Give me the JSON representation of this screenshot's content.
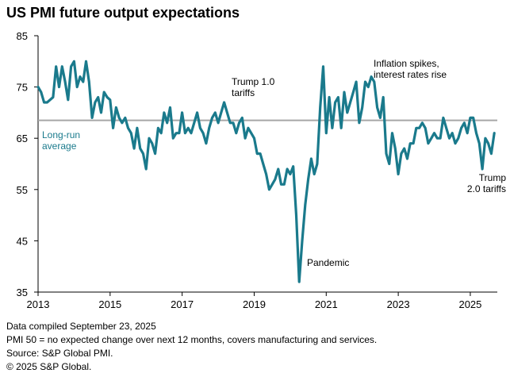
{
  "title": "US PMI future output expectations",
  "chart_data": {
    "type": "line",
    "title": "US PMI future output expectations",
    "xlabel": "",
    "ylabel": "",
    "xlim": [
      2013.0,
      2025.75
    ],
    "ylim": [
      35,
      85
    ],
    "y_ticks": [
      35,
      45,
      55,
      65,
      75,
      85
    ],
    "x_ticks": [
      2013,
      2015,
      2017,
      2019,
      2021,
      2023,
      2025
    ],
    "grid": false,
    "line_color": "#1a7a8c",
    "reference_line": {
      "label": "Long-run average",
      "value": 68.5,
      "color": "#a6a6a6",
      "label_color": "#1a7a8c"
    },
    "annotations": [
      {
        "text": "Trump 1.0 tariffs",
        "x": 2018.3,
        "y": 72
      },
      {
        "text": "Pandemic",
        "x": 2020.4,
        "y": 37.5
      },
      {
        "text": "Inflation spikes, interest rates rise",
        "x": 2022.1,
        "y": 78
      },
      {
        "text": "Trump 2.0 tariffs",
        "x": 2025.3,
        "y": 60
      }
    ],
    "series": [
      {
        "x": [
          2013.0,
          2013.083,
          2013.167,
          2013.25,
          2013.333,
          2013.417,
          2013.5,
          2013.583,
          2013.667,
          2013.75,
          2013.833,
          2013.917,
          2014.0,
          2014.083,
          2014.167,
          2014.25,
          2014.333,
          2014.417,
          2014.5,
          2014.583,
          2014.667,
          2014.75,
          2014.833,
          2014.917,
          2015.0,
          2015.083,
          2015.167,
          2015.25,
          2015.333,
          2015.417,
          2015.5,
          2015.583,
          2015.667,
          2015.75,
          2015.833,
          2015.917,
          2016.0,
          2016.083,
          2016.167,
          2016.25,
          2016.333,
          2016.417,
          2016.5,
          2016.583,
          2016.667,
          2016.75,
          2016.833,
          2016.917,
          2017.0,
          2017.083,
          2017.167,
          2017.25,
          2017.333,
          2017.417,
          2017.5,
          2017.583,
          2017.667,
          2017.75,
          2017.833,
          2017.917,
          2018.0,
          2018.083,
          2018.167,
          2018.25,
          2018.333,
          2018.417,
          2018.5,
          2018.583,
          2018.667,
          2018.75,
          2018.833,
          2018.917,
          2019.0,
          2019.083,
          2019.167,
          2019.25,
          2019.333,
          2019.417,
          2019.5,
          2019.583,
          2019.667,
          2019.75,
          2019.833,
          2019.917,
          2020.0,
          2020.083,
          2020.167,
          2020.25,
          2020.333,
          2020.417,
          2020.5,
          2020.583,
          2020.667,
          2020.75,
          2020.833,
          2020.917,
          2021.0,
          2021.083,
          2021.167,
          2021.25,
          2021.333,
          2021.417,
          2021.5,
          2021.583,
          2021.667,
          2021.75,
          2021.833,
          2021.917,
          2022.0,
          2022.083,
          2022.167,
          2022.25,
          2022.333,
          2022.417,
          2022.5,
          2022.583,
          2022.667,
          2022.75,
          2022.833,
          2022.917,
          2023.0,
          2023.083,
          2023.167,
          2023.25,
          2023.333,
          2023.417,
          2023.5,
          2023.583,
          2023.667,
          2023.75,
          2023.833,
          2023.917,
          2024.0,
          2024.083,
          2024.167,
          2024.25,
          2024.333,
          2024.417,
          2024.5,
          2024.583,
          2024.667,
          2024.75,
          2024.833,
          2024.917,
          2025.0,
          2025.083,
          2025.167,
          2025.25,
          2025.333,
          2025.417,
          2025.5,
          2025.583,
          2025.667
        ],
        "y": [
          75,
          74,
          72,
          72,
          72.5,
          73,
          79,
          75,
          79,
          76,
          72.5,
          79,
          80,
          75,
          77,
          76,
          80,
          76,
          69,
          72,
          73,
          70,
          74,
          73,
          72.5,
          67,
          71,
          69,
          68,
          69,
          67,
          66,
          63,
          67,
          63,
          62,
          59,
          65,
          64,
          62,
          67,
          66,
          70,
          68,
          71,
          65,
          66,
          66,
          70,
          66,
          67,
          66,
          68,
          70,
          67,
          66,
          64,
          67,
          69,
          70,
          68,
          70,
          72,
          70,
          68,
          68,
          66,
          68,
          69,
          65,
          67,
          66,
          65,
          62,
          62,
          60,
          58,
          55,
          56,
          57,
          59,
          56,
          56,
          59,
          58,
          59.5,
          50,
          37,
          45,
          52,
          57,
          61,
          58,
          60,
          71,
          79,
          66,
          73,
          67,
          72,
          73,
          67,
          74,
          70,
          72,
          74,
          76,
          68,
          71,
          76,
          75,
          77,
          76,
          71,
          69,
          73,
          62,
          60,
          66,
          63,
          58,
          62,
          63,
          61,
          64,
          64,
          67,
          67,
          68,
          67,
          64,
          65,
          66,
          65,
          65,
          69,
          67,
          65,
          66,
          64,
          65,
          67,
          68,
          66,
          69,
          69,
          66,
          64,
          59,
          65,
          64,
          62,
          66
        ]
      }
    ]
  },
  "notes": [
    "Data compiled September 23, 2025",
    "PMI 50 =  no expected change over next 12 months, covers manufacturing and services.",
    "Source: S&P Global PMI.",
    "© 2025 S&P Global."
  ]
}
